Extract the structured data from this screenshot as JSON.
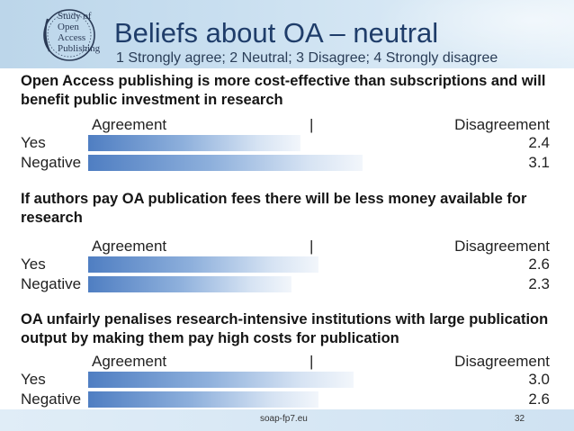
{
  "header": {
    "logo_lines": [
      "Study of",
      "Open",
      "Access",
      "Publishing"
    ],
    "title": "Beliefs about OA – neutral",
    "subtitle": "1 Strongly agree; 2 Neutral; 3 Disagree; 4 Strongly disagree"
  },
  "scale": {
    "agreement_label": "Agreement",
    "separator": "|",
    "disagreement_label": "Disagreement"
  },
  "accent_colors": {
    "bar_start": "#4f7ec2",
    "bar_end": "#f2f6fb",
    "title": "#1f3d6a"
  },
  "chart_data": {
    "type": "bar",
    "orientation": "horizontal",
    "questions": [
      {
        "text": "Open Access publishing is more cost-effective than subscriptions and will benefit public investment in research",
        "categories": [
          "Yes",
          "Negative"
        ],
        "values": [
          2.4,
          3.1
        ]
      },
      {
        "text": "If authors pay OA publication fees there will be less money available for research",
        "categories": [
          "Yes",
          "Negative"
        ],
        "values": [
          2.6,
          2.3
        ]
      },
      {
        "text": "OA unfairly penalises research-intensive institutions with large publication output by making them pay high costs for publication",
        "categories": [
          "Yes",
          "Negative"
        ],
        "values": [
          3.0,
          2.6
        ]
      }
    ],
    "value_labels": [
      [
        "2.4",
        "3.1"
      ],
      [
        "2.6",
        "2.3"
      ],
      [
        "3.0",
        "2.6"
      ]
    ]
  },
  "footer": {
    "url": "soap-fp7.eu",
    "page": "32"
  }
}
